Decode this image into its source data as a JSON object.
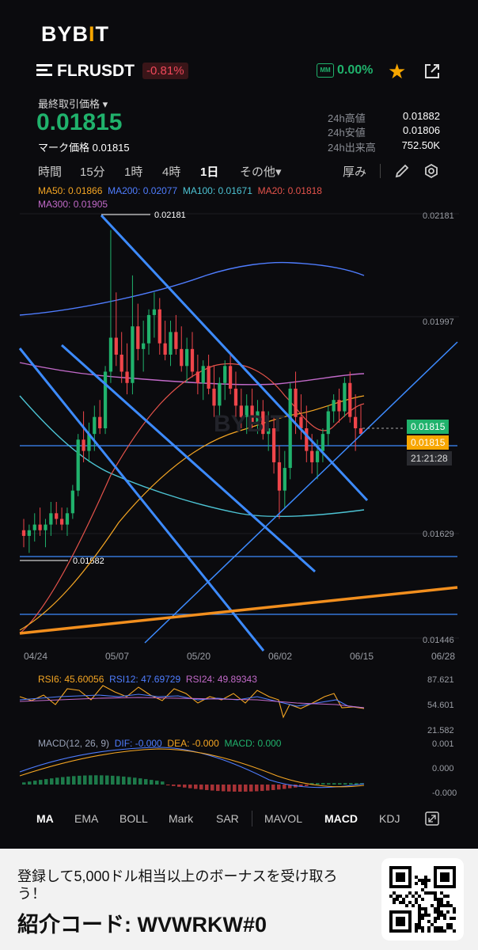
{
  "brand": {
    "logo_left": "BYB",
    "logo_bar": "I",
    "logo_right": "T"
  },
  "pair": {
    "symbol": "FLRUSDT",
    "change": "-0.81%",
    "mm_icon": "MM",
    "mm_value": "0.00%"
  },
  "price": {
    "last_label": "最終取引価格 ▾",
    "last_price": "0.01815",
    "mark_label": "マーク価格",
    "mark_price": "0.01815"
  },
  "stats": [
    {
      "label": "24h高値",
      "value": "0.01882"
    },
    {
      "label": "24h安値",
      "value": "0.01806"
    },
    {
      "label": "24h出来高",
      "value": "752.50K"
    }
  ],
  "timeframes": {
    "items": [
      "時間",
      "15分",
      "1時",
      "4時",
      "1日",
      "その他▾"
    ],
    "active": "1日",
    "depth_label": "厚み"
  },
  "ma_legend": {
    "line1": [
      {
        "text": "MA50: 0.01866",
        "color": "#f5a623"
      },
      {
        "text": "MA200: 0.02077",
        "color": "#4f7dff"
      },
      {
        "text": "MA100: 0.01671",
        "color": "#4dc4d4"
      },
      {
        "text": "MA20: 0.01818",
        "color": "#e5534b"
      }
    ],
    "line2": [
      {
        "text": "MA300: 0.01905",
        "color": "#c26ac9"
      }
    ]
  },
  "chart_data": {
    "type": "candlestick",
    "y_ticks": [
      "0.02181",
      "0.01997",
      "0.01629",
      "0.01446"
    ],
    "x_ticks": [
      "04/24",
      "05/07",
      "05/20",
      "06/02",
      "06/15",
      "06/28"
    ],
    "ylim": [
      0.0143,
      0.0221
    ],
    "high_marker": "0.02181",
    "low_marker": "0.01582",
    "horizontal_levels": [
      0.01799,
      0.01582,
      0.01491
    ],
    "candles": [
      [
        0.0164,
        0.0166,
        0.0161,
        0.0163
      ],
      [
        0.0163,
        0.0165,
        0.016,
        0.0164
      ],
      [
        0.0164,
        0.0167,
        0.0162,
        0.0165
      ],
      [
        0.0165,
        0.0168,
        0.0163,
        0.0164
      ],
      [
        0.0164,
        0.0166,
        0.0161,
        0.0165
      ],
      [
        0.0165,
        0.0169,
        0.0163,
        0.0167
      ],
      [
        0.0167,
        0.0169,
        0.0165,
        0.0166
      ],
      [
        0.0166,
        0.0168,
        0.0164,
        0.0165
      ],
      [
        0.0165,
        0.0168,
        0.0163,
        0.0167
      ],
      [
        0.0167,
        0.0172,
        0.0166,
        0.0171
      ],
      [
        0.0171,
        0.0181,
        0.017,
        0.018
      ],
      [
        0.018,
        0.0185,
        0.0176,
        0.0178
      ],
      [
        0.0178,
        0.0183,
        0.0176,
        0.0181
      ],
      [
        0.0181,
        0.0186,
        0.0178,
        0.0184
      ],
      [
        0.0184,
        0.0187,
        0.0181,
        0.0182
      ],
      [
        0.0182,
        0.0193,
        0.0181,
        0.0192
      ],
      [
        0.0192,
        0.0217,
        0.019,
        0.0198
      ],
      [
        0.0198,
        0.0206,
        0.0193,
        0.0195
      ],
      [
        0.0195,
        0.0199,
        0.019,
        0.0192
      ],
      [
        0.0192,
        0.0197,
        0.0188,
        0.019
      ],
      [
        0.019,
        0.0209,
        0.0188,
        0.02
      ],
      [
        0.02,
        0.0204,
        0.0194,
        0.0196
      ],
      [
        0.0196,
        0.0201,
        0.0192,
        0.0197
      ],
      [
        0.0197,
        0.0203,
        0.0195,
        0.0202
      ],
      [
        0.0202,
        0.0206,
        0.0198,
        0.0203
      ],
      [
        0.0203,
        0.0205,
        0.0195,
        0.0197
      ],
      [
        0.0197,
        0.0201,
        0.0194,
        0.0195
      ],
      [
        0.0195,
        0.0201,
        0.0193,
        0.0199
      ],
      [
        0.0199,
        0.0202,
        0.0195,
        0.0196
      ],
      [
        0.0196,
        0.02,
        0.0192,
        0.0193
      ],
      [
        0.0193,
        0.0198,
        0.019,
        0.0196
      ],
      [
        0.0196,
        0.0199,
        0.0191,
        0.0192
      ],
      [
        0.0192,
        0.0195,
        0.0188,
        0.019
      ],
      [
        0.019,
        0.0194,
        0.0187,
        0.0193
      ],
      [
        0.0193,
        0.0195,
        0.0188,
        0.0189
      ],
      [
        0.0189,
        0.0193,
        0.0184,
        0.0186
      ],
      [
        0.0186,
        0.0191,
        0.0184,
        0.019
      ],
      [
        0.019,
        0.0194,
        0.0187,
        0.0193
      ],
      [
        0.0193,
        0.0195,
        0.0188,
        0.0189
      ],
      [
        0.0189,
        0.0192,
        0.0184,
        0.0186
      ],
      [
        0.0186,
        0.0189,
        0.0182,
        0.0184
      ],
      [
        0.0184,
        0.0188,
        0.0181,
        0.0186
      ],
      [
        0.0186,
        0.0189,
        0.0182,
        0.0183
      ],
      [
        0.0183,
        0.0187,
        0.0181,
        0.0185
      ],
      [
        0.0185,
        0.0187,
        0.018,
        0.0181
      ],
      [
        0.0181,
        0.0185,
        0.0178,
        0.0182
      ],
      [
        0.0182,
        0.0184,
        0.0174,
        0.0176
      ],
      [
        0.0176,
        0.0179,
        0.0166,
        0.0171
      ],
      [
        0.0171,
        0.0178,
        0.0168,
        0.0175
      ],
      [
        0.0175,
        0.019,
        0.0173,
        0.0189
      ],
      [
        0.0189,
        0.0192,
        0.0181,
        0.0184
      ],
      [
        0.0184,
        0.0188,
        0.018,
        0.0182
      ],
      [
        0.0182,
        0.0186,
        0.0176,
        0.0178
      ],
      [
        0.0178,
        0.0181,
        0.0174,
        0.0176
      ],
      [
        0.0176,
        0.018,
        0.0173,
        0.0178
      ],
      [
        0.0178,
        0.0182,
        0.0176,
        0.0181
      ],
      [
        0.0181,
        0.0186,
        0.0179,
        0.0185
      ],
      [
        0.0185,
        0.0188,
        0.0183,
        0.0187
      ],
      [
        0.0187,
        0.0189,
        0.0183,
        0.0185
      ],
      [
        0.0185,
        0.0191,
        0.0184,
        0.019
      ],
      [
        0.019,
        0.0192,
        0.0183,
        0.0184
      ],
      [
        0.0184,
        0.0188,
        0.0178,
        0.0182
      ],
      [
        0.0182,
        0.0186,
        0.0181,
        0.0181
      ]
    ],
    "price_tag": "0.01815",
    "mark_tag": "0.01815",
    "countdown": "21:21:28"
  },
  "rsi": {
    "rsi6": "RSI6: 45.60056",
    "rsi12": "RSI12: 47.69729",
    "rsi24": "RSI24: 49.89343",
    "ticks": [
      "87.621",
      "54.601",
      "21.582"
    ]
  },
  "macd": {
    "title": "MACD(12, 26, 9)",
    "dif": "DIF: -0.000",
    "dea": "DEA: -0.000",
    "macd": "MACD: 0.000",
    "ticks": [
      "0.001",
      "0.000",
      "-0.000"
    ]
  },
  "indicator_tabs": {
    "items": [
      "MA",
      "EMA",
      "BOLL",
      "Mark",
      "SAR",
      "MAVOL",
      "MACD",
      "KDJ"
    ],
    "active_main": "MA",
    "active_sub": "MACD"
  },
  "banner": {
    "text": "登録して5,000ドル相当以上のボーナスを受け取ろう！",
    "code": "紹介コード: WVWRKW#0"
  },
  "colors": {
    "up": "#20b26c",
    "down": "#ef454a",
    "accent": "#f7a600",
    "trend_blue": "#3d8bff"
  }
}
